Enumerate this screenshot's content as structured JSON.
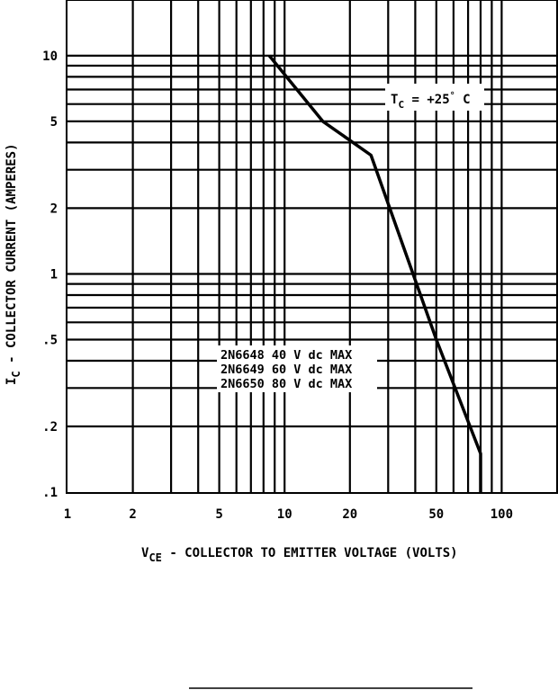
{
  "chart_data": {
    "type": "line",
    "xscale": "log",
    "yscale": "log",
    "xlim": [
      1,
      180
    ],
    "ylim": [
      0.1,
      18
    ],
    "x_ticks": [
      {
        "value": 1,
        "label": "1"
      },
      {
        "value": 2,
        "label": "2"
      },
      {
        "value": 5,
        "label": "5"
      },
      {
        "value": 10,
        "label": "10"
      },
      {
        "value": 20,
        "label": "20"
      },
      {
        "value": 50,
        "label": "50"
      },
      {
        "value": 100,
        "label": "100"
      }
    ],
    "y_ticks": [
      {
        "value": 0.1,
        "label": ".1"
      },
      {
        "value": 0.2,
        "label": ".2"
      },
      {
        "value": 0.5,
        "label": ".5"
      },
      {
        "value": 1,
        "label": "1"
      },
      {
        "value": 2,
        "label": "2"
      },
      {
        "value": 5,
        "label": "5"
      },
      {
        "value": 10,
        "label": "10"
      }
    ],
    "x_gridlines": [
      2,
      3,
      4,
      5,
      6,
      7,
      8,
      9,
      10,
      20,
      30,
      40,
      50,
      60,
      70,
      80,
      90,
      100
    ],
    "y_gridlines": [
      0.2,
      0.3,
      0.4,
      0.5,
      0.6,
      0.7,
      0.8,
      0.9,
      1,
      2,
      3,
      4,
      5,
      6,
      7,
      8,
      9,
      10
    ],
    "grid": true,
    "series": [
      {
        "x": [
          8.5,
          15,
          25,
          50,
          80,
          80
        ],
        "y": [
          10,
          5,
          3.5,
          0.5,
          0.15,
          0.1
        ]
      }
    ],
    "xlabel_main": "V",
    "xlabel_sub": "CE",
    "xlabel_rest": " - COLLECTOR TO EMITTER VOLTAGE (VOLTS)",
    "ylabel_main": "I",
    "ylabel_sub": "C",
    "ylabel_rest": " - COLLECTOR CURRENT (AMPERES)",
    "annotation": {
      "main": "T",
      "sub": "C",
      "rest": " = +25",
      "deg": "°",
      "unit": " C"
    },
    "device_labels": [
      "2N6648 40 V dc MAX",
      "2N6649 60 V dc MAX",
      "2N6650 80 V dc MAX"
    ]
  }
}
